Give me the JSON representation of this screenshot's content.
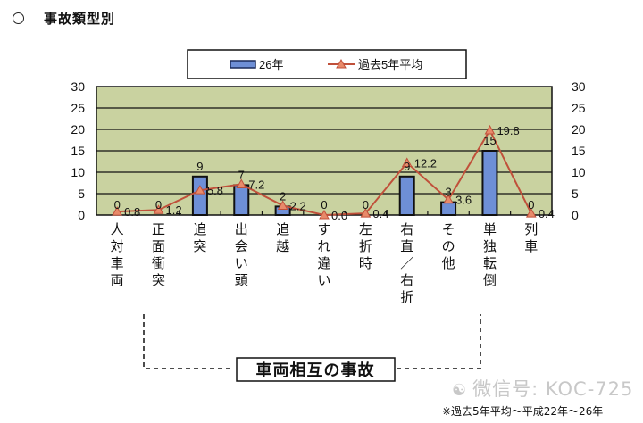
{
  "page": {
    "title_marker": "○",
    "title": "事故類型別",
    "group_label": "車両相互の事故",
    "watermark": "微信号: KOC-725",
    "footnote": "※過去5年平均～平成22年～26年"
  },
  "legend": {
    "bar_label": "26年",
    "line_label": "過去5年平均"
  },
  "colors": {
    "plot_bg": "#c9d2a0",
    "bar_fill": "#6e8fd6",
    "bar_border": "#111111",
    "line": "#c0503a",
    "marker": "#e88a6a",
    "grid": "#111111"
  },
  "chart_data": {
    "type": "bar+line",
    "title": "事故類型別",
    "categories": [
      "人対車両",
      "正面衝突",
      "追突",
      "出会い頭",
      "追越",
      "すれ違い",
      "左折時",
      "右直／右折",
      "その他",
      "単独転倒",
      "列車"
    ],
    "series": [
      {
        "name": "26年",
        "type": "bar",
        "values": [
          0,
          0,
          9,
          7,
          2,
          0,
          0,
          9,
          3,
          15,
          0
        ]
      },
      {
        "name": "過去5年平均",
        "type": "line",
        "values": [
          0.8,
          1.2,
          5.8,
          7.2,
          2.2,
          0.0,
          0.4,
          12.2,
          3.6,
          19.8,
          0.4
        ]
      }
    ],
    "bar_labels": [
      "0",
      "0",
      "9",
      "7",
      "2",
      "0",
      "0",
      "9",
      "3",
      "15",
      "0"
    ],
    "line_labels": [
      "0.8",
      "1.2",
      "5.8",
      "7.2",
      "2.2",
      "0.0",
      "0.4",
      "12.2",
      "3.6",
      "19.8",
      "0.4"
    ],
    "ylim": [
      0,
      30
    ],
    "yticks": [
      0,
      5,
      10,
      15,
      20,
      25,
      30
    ],
    "secondary_yticks": [
      0,
      5,
      10,
      15,
      20,
      25,
      30
    ],
    "grid": true,
    "legend_position": "top",
    "annotations": [
      {
        "text": "車両相互の事故",
        "spans_categories": [
          "正面衝突",
          "追突",
          "出会い頭",
          "追越",
          "すれ違い",
          "左折時",
          "右直／右折",
          "その他"
        ]
      }
    ]
  }
}
